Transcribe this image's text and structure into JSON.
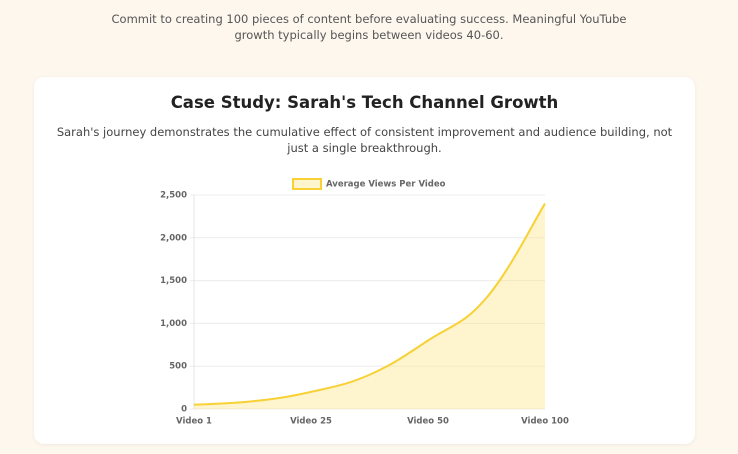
{
  "intro": "Commit to creating 100 pieces of content before evaluating success. Meaningful YouTube growth typically begins between videos 40-60.",
  "card": {
    "title": "Case Study: Sarah's Tech Channel Growth",
    "description": "Sarah's journey demonstrates the cumulative effect of consistent improvement and audience building, not just a single breakthrough."
  },
  "chart_data": {
    "type": "line",
    "categories": [
      "Video 1",
      null,
      "Video 25",
      null,
      "Video 50",
      null,
      "Video 100"
    ],
    "series": [
      {
        "name": "Average Views Per Video",
        "color": "#f7d136",
        "fill": "rgba(252,228,130,0.4)",
        "values": [
          50,
          90,
          200,
          400,
          800,
          1300,
          2400
        ]
      }
    ],
    "ylim": [
      0,
      2500
    ],
    "yticks": [
      0,
      500,
      {
        "value": 1000,
        "label": "1,000"
      },
      {
        "value": 1500,
        "label": "1,500"
      },
      {
        "value": 2000,
        "label": "2,000"
      },
      {
        "value": 2500,
        "label": "2,500"
      }
    ],
    "grid": true,
    "legend": "top"
  }
}
